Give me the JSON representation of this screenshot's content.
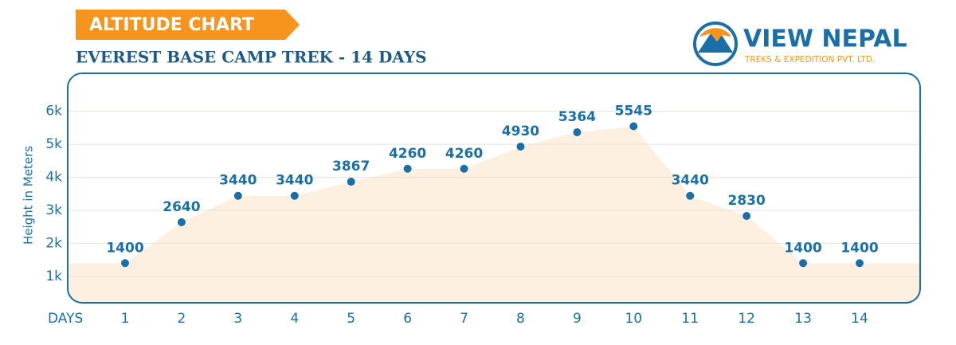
{
  "chart_data": {
    "type": "line",
    "title": "ALTITUDE CHART",
    "subtitle": "EVEREST BASE CAMP TREK - 14 DAYS",
    "x_label": "DAYS",
    "y_label": "Height in Meters",
    "categories": [
      "1",
      "2",
      "3",
      "4",
      "5",
      "6",
      "7",
      "8",
      "9",
      "10",
      "11",
      "12",
      "13",
      "14"
    ],
    "values": [
      1400,
      2640,
      3440,
      3440,
      3867,
      4260,
      4260,
      4930,
      5364,
      5545,
      3440,
      2830,
      1400,
      1400
    ],
    "color": "#1b6fa8",
    "fill_color": "#fdf0e0",
    "ylim": [
      200,
      7150
    ],
    "yticks": [
      {
        "value": 1000,
        "label": "1k"
      },
      {
        "value": 2000,
        "label": "2k"
      },
      {
        "value": 3000,
        "label": "3k"
      },
      {
        "value": 4000,
        "label": "4k"
      },
      {
        "value": 5000,
        "label": "5k"
      },
      {
        "value": 6000,
        "label": "6k"
      }
    ],
    "grid": true
  },
  "logo": {
    "name": "VIEW NEPAL",
    "tagline": "TREKS & EXPEDITION PVT. LTD."
  }
}
